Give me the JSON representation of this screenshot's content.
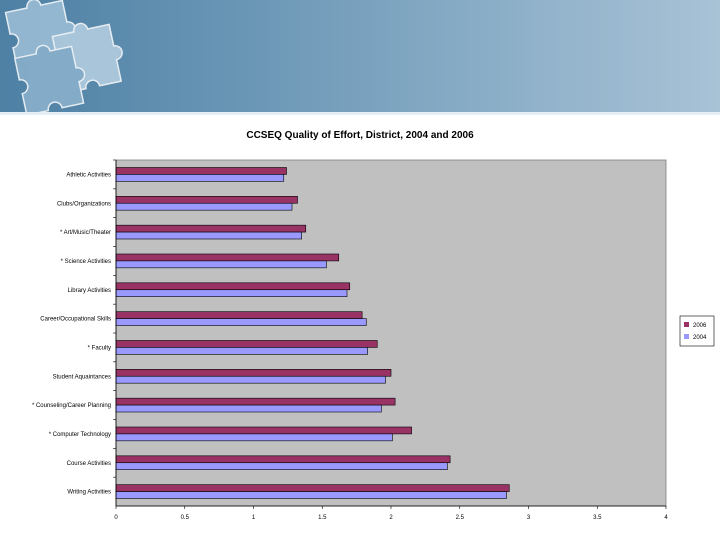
{
  "colors": {
    "banner": "#5c8aae",
    "plot_bg": "#c0c0c0",
    "series_2006": "#993366",
    "series_2004": "#9999ff"
  },
  "chart_data": {
    "type": "bar",
    "orientation": "horizontal",
    "title": "CCSEQ Quality of Effort, District, 2004 and 2006",
    "categories": [
      "Athletic Activities",
      "Clubs/Organizations",
      "* Art/Music/Theater",
      "* Science Activities",
      "Library Activities",
      "Career/Occupational Skills",
      "* Faculty",
      "Student Aquaintances",
      "* Counseling/Career Planning",
      "* Computer Technology",
      "Course Activities",
      "Writing Activities"
    ],
    "series": [
      {
        "name": "2006",
        "values": [
          1.24,
          1.32,
          1.38,
          1.62,
          1.7,
          1.79,
          1.9,
          2.0,
          2.03,
          2.15,
          2.43,
          2.86
        ]
      },
      {
        "name": "2004",
        "values": [
          1.22,
          1.28,
          1.35,
          1.53,
          1.68,
          1.82,
          1.83,
          1.96,
          1.93,
          2.01,
          2.41,
          2.84
        ]
      }
    ],
    "xlim": [
      0,
      4
    ],
    "x_ticks": [
      "0",
      "0.5",
      "1",
      "1.5",
      "2",
      "2.5",
      "3",
      "3.5",
      "4"
    ],
    "grid": false,
    "legend_position": "right"
  }
}
